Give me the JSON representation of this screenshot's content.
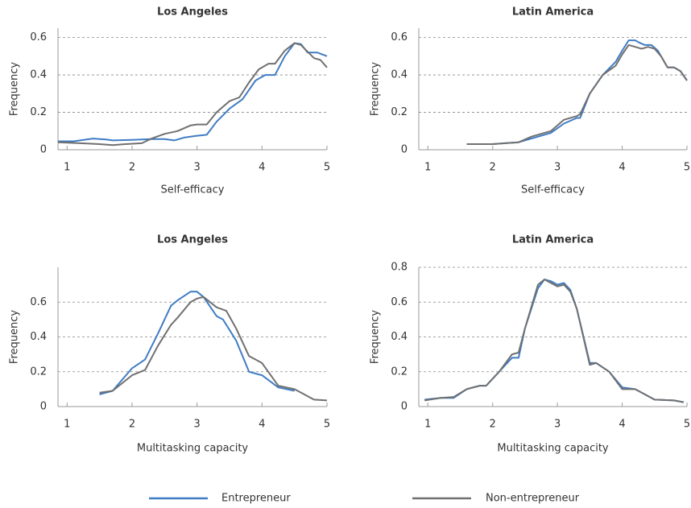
{
  "chart_data": [
    {
      "type": "line",
      "title": "Los Angeles",
      "xlabel": "Self-efficacy",
      "ylabel": "Frequency",
      "xlim": [
        0.86,
        5
      ],
      "xticks": [
        1,
        2,
        3,
        4,
        5
      ],
      "ylim": [
        0,
        0.65
      ],
      "yticks": [
        0,
        0.2,
        0.4,
        0.6
      ],
      "grid": true,
      "series": [
        {
          "name": "Entrepreneur",
          "color": "#3f7cc4",
          "x": [
            0.86,
            1.1,
            1.4,
            1.6,
            1.7,
            2.0,
            2.3,
            2.5,
            2.65,
            2.8,
            3.0,
            3.15,
            3.3,
            3.5,
            3.7,
            3.9,
            4.05,
            4.2,
            4.35,
            4.5,
            4.6,
            4.7,
            4.85,
            5.0
          ],
          "values": [
            0.045,
            0.045,
            0.06,
            0.055,
            0.05,
            0.053,
            0.057,
            0.057,
            0.05,
            0.065,
            0.075,
            0.08,
            0.15,
            0.22,
            0.27,
            0.37,
            0.4,
            0.4,
            0.5,
            0.57,
            0.565,
            0.52,
            0.52,
            0.5
          ]
        },
        {
          "name": "Non-entrepreneur",
          "color": "#707070",
          "x": [
            0.86,
            1.2,
            1.5,
            1.7,
            1.9,
            2.15,
            2.3,
            2.5,
            2.7,
            2.9,
            3.0,
            3.15,
            3.3,
            3.5,
            3.65,
            3.8,
            3.95,
            4.1,
            4.2,
            4.35,
            4.5,
            4.6,
            4.8,
            4.9,
            5.0
          ],
          "values": [
            0.04,
            0.035,
            0.03,
            0.025,
            0.03,
            0.035,
            0.06,
            0.085,
            0.1,
            0.13,
            0.135,
            0.135,
            0.2,
            0.26,
            0.28,
            0.36,
            0.43,
            0.46,
            0.46,
            0.53,
            0.57,
            0.56,
            0.49,
            0.48,
            0.44
          ]
        }
      ]
    },
    {
      "type": "line",
      "title": "Latin America",
      "xlabel": "Self-efficacy",
      "ylabel": "Frequency",
      "xlim": [
        0.86,
        5
      ],
      "xticks": [
        1,
        2,
        3,
        4,
        5
      ],
      "ylim": [
        0,
        0.65
      ],
      "yticks": [
        0,
        0.2,
        0.4,
        0.6
      ],
      "grid": true,
      "series": [
        {
          "name": "Entrepreneur",
          "color": "#3f7cc4",
          "x": [
            1.6,
            2.0,
            2.4,
            2.6,
            2.8,
            2.9,
            3.1,
            3.3,
            3.35,
            3.5,
            3.7,
            3.9,
            4.0,
            4.1,
            4.2,
            4.25,
            4.35,
            4.45,
            4.55,
            4.7,
            4.8,
            4.9,
            5.0
          ],
          "values": [
            0.03,
            0.03,
            0.04,
            0.06,
            0.08,
            0.09,
            0.14,
            0.17,
            0.17,
            0.3,
            0.4,
            0.47,
            0.53,
            0.585,
            0.585,
            0.575,
            0.56,
            0.56,
            0.53,
            0.44,
            0.44,
            0.42,
            0.37
          ]
        },
        {
          "name": "Non-entrepreneur",
          "color": "#707070",
          "x": [
            1.6,
            2.0,
            2.4,
            2.6,
            2.8,
            2.9,
            3.1,
            3.3,
            3.35,
            3.5,
            3.7,
            3.9,
            4.0,
            4.1,
            4.2,
            4.3,
            4.4,
            4.5,
            4.6,
            4.7,
            4.8,
            4.9,
            5.0
          ],
          "values": [
            0.03,
            0.03,
            0.04,
            0.07,
            0.09,
            0.1,
            0.16,
            0.18,
            0.19,
            0.3,
            0.4,
            0.45,
            0.51,
            0.56,
            0.55,
            0.54,
            0.55,
            0.54,
            0.5,
            0.44,
            0.44,
            0.42,
            0.37
          ]
        }
      ]
    },
    {
      "type": "line",
      "title": "Los Angeles",
      "xlabel": "Multitasking capacity",
      "ylabel": "Frequency",
      "xlim": [
        0.86,
        5
      ],
      "xticks": [
        1,
        2,
        3,
        4,
        5
      ],
      "ylim": [
        0,
        0.8
      ],
      "yticks": [
        0,
        0.2,
        0.4,
        0.6
      ],
      "grid": true,
      "series": [
        {
          "name": "Entrepreneur",
          "color": "#3f7cc4",
          "x": [
            1.5,
            1.7,
            2.0,
            2.2,
            2.4,
            2.6,
            2.7,
            2.9,
            3.0,
            3.1,
            3.3,
            3.4,
            3.6,
            3.8,
            4.0,
            4.25,
            4.5
          ],
          "values": [
            0.07,
            0.09,
            0.22,
            0.27,
            0.42,
            0.58,
            0.61,
            0.66,
            0.66,
            0.63,
            0.52,
            0.5,
            0.38,
            0.2,
            0.18,
            0.11,
            0.09
          ]
        },
        {
          "name": "Non-entrepreneur",
          "color": "#707070",
          "x": [
            1.5,
            1.7,
            2.0,
            2.2,
            2.4,
            2.6,
            2.7,
            2.9,
            3.0,
            3.1,
            3.3,
            3.45,
            3.6,
            3.8,
            4.0,
            4.25,
            4.5,
            4.8,
            5.0
          ],
          "values": [
            0.08,
            0.09,
            0.18,
            0.21,
            0.35,
            0.47,
            0.51,
            0.6,
            0.62,
            0.63,
            0.57,
            0.55,
            0.45,
            0.29,
            0.25,
            0.12,
            0.1,
            0.04,
            0.035
          ]
        }
      ]
    },
    {
      "type": "line",
      "title": "Latin America",
      "xlabel": "Multitasking capacity",
      "ylabel": "Frequency",
      "xlim": [
        0.86,
        5
      ],
      "xticks": [
        1,
        2,
        3,
        4,
        5
      ],
      "ylim": [
        0,
        0.8
      ],
      "yticks": [
        0,
        0.2,
        0.4,
        0.6,
        0.8
      ],
      "grid": true,
      "series": [
        {
          "name": "Entrepreneur",
          "color": "#3f7cc4",
          "x": [
            0.95,
            1.2,
            1.4,
            1.6,
            1.8,
            1.9,
            2.1,
            2.3,
            2.4,
            2.5,
            2.7,
            2.8,
            2.9,
            3.0,
            3.1,
            3.2,
            3.3,
            3.5,
            3.6,
            3.8,
            4.0,
            4.2,
            4.5,
            4.8,
            4.95
          ],
          "values": [
            0.04,
            0.05,
            0.05,
            0.1,
            0.12,
            0.12,
            0.2,
            0.28,
            0.28,
            0.45,
            0.68,
            0.73,
            0.72,
            0.7,
            0.71,
            0.67,
            0.56,
            0.25,
            0.25,
            0.2,
            0.11,
            0.1,
            0.04,
            0.035,
            0.025
          ]
        },
        {
          "name": "Non-entrepreneur",
          "color": "#707070",
          "x": [
            0.95,
            1.2,
            1.4,
            1.6,
            1.8,
            1.9,
            2.1,
            2.3,
            2.4,
            2.5,
            2.7,
            2.8,
            2.9,
            3.0,
            3.1,
            3.2,
            3.3,
            3.5,
            3.6,
            3.8,
            4.0,
            4.2,
            4.5,
            4.8,
            4.95
          ],
          "values": [
            0.035,
            0.05,
            0.055,
            0.1,
            0.12,
            0.12,
            0.2,
            0.3,
            0.31,
            0.45,
            0.7,
            0.73,
            0.71,
            0.69,
            0.7,
            0.66,
            0.56,
            0.24,
            0.25,
            0.2,
            0.1,
            0.1,
            0.04,
            0.035,
            0.025
          ]
        }
      ]
    }
  ]
}
